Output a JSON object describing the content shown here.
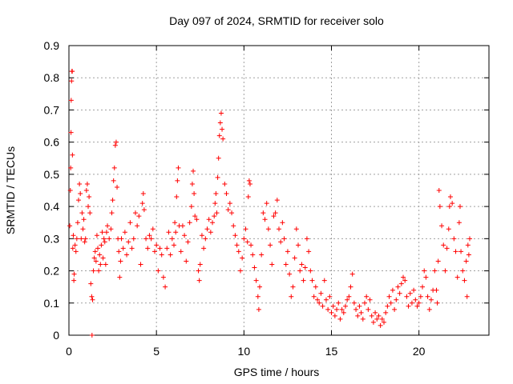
{
  "chart_data": {
    "type": "scatter",
    "title": "Day 097 of 2024, SRMTID for receiver solo",
    "xlabel": "GPS time / hours",
    "ylabel": "SRMTID / TECUs",
    "xlim": [
      0,
      24
    ],
    "ylim": [
      0,
      0.9
    ],
    "xticks": [
      0,
      5,
      10,
      15,
      20
    ],
    "yticks": [
      0,
      0.1,
      0.2,
      0.3,
      0.4,
      0.5,
      0.6,
      0.7,
      0.8,
      0.9
    ],
    "xtick_labels": [
      "0",
      "5",
      "10",
      "15",
      "20"
    ],
    "ytick_labels": [
      "0",
      "0.1",
      "0.2",
      "0.3",
      "0.4",
      "0.5",
      "0.6",
      "0.7",
      "0.8",
      "0.9"
    ],
    "grid": true,
    "marker": "+",
    "color": "#ff0000",
    "series": [
      {
        "name": "SRMTID",
        "points": [
          [
            0.05,
            0.34
          ],
          [
            0.08,
            0.45
          ],
          [
            0.1,
            0.52
          ],
          [
            0.12,
            0.63
          ],
          [
            0.13,
            0.73
          ],
          [
            0.15,
            0.79
          ],
          [
            0.17,
            0.82
          ],
          [
            0.19,
            0.82
          ],
          [
            0.2,
            0.56
          ],
          [
            0.22,
            0.27
          ],
          [
            0.25,
            0.31
          ],
          [
            0.28,
            0.17
          ],
          [
            0.3,
            0.19
          ],
          [
            0.35,
            0.28
          ],
          [
            0.4,
            0.26
          ],
          [
            0.45,
            0.3
          ],
          [
            0.5,
            0.35
          ],
          [
            0.55,
            0.42
          ],
          [
            0.6,
            0.47
          ],
          [
            0.65,
            0.44
          ],
          [
            0.7,
            0.3
          ],
          [
            0.75,
            0.38
          ],
          [
            0.8,
            0.33
          ],
          [
            0.85,
            0.36
          ],
          [
            0.9,
            0.29
          ],
          [
            0.95,
            0.3
          ],
          [
            1.0,
            0.45
          ],
          [
            1.05,
            0.47
          ],
          [
            1.1,
            0.4
          ],
          [
            1.15,
            0.43
          ],
          [
            1.2,
            0.38
          ],
          [
            1.25,
            0.16
          ],
          [
            1.3,
            0.12
          ],
          [
            1.32,
            0.0
          ],
          [
            1.35,
            0.11
          ],
          [
            1.4,
            0.2
          ],
          [
            1.45,
            0.24
          ],
          [
            1.5,
            0.26
          ],
          [
            1.55,
            0.23
          ],
          [
            1.6,
            0.31
          ],
          [
            1.65,
            0.27
          ],
          [
            1.7,
            0.2
          ],
          [
            1.75,
            0.25
          ],
          [
            1.8,
            0.22
          ],
          [
            1.85,
            0.28
          ],
          [
            1.9,
            0.32
          ],
          [
            1.95,
            0.24
          ],
          [
            2.0,
            0.3
          ],
          [
            2.05,
            0.29
          ],
          [
            2.1,
            0.22
          ],
          [
            2.15,
            0.32
          ],
          [
            2.2,
            0.34
          ],
          [
            2.3,
            0.3
          ],
          [
            2.4,
            0.33
          ],
          [
            2.45,
            0.38
          ],
          [
            2.5,
            0.42
          ],
          [
            2.55,
            0.48
          ],
          [
            2.6,
            0.52
          ],
          [
            2.65,
            0.59
          ],
          [
            2.7,
            0.6
          ],
          [
            2.75,
            0.46
          ],
          [
            2.8,
            0.3
          ],
          [
            2.85,
            0.26
          ],
          [
            2.9,
            0.18
          ],
          [
            2.95,
            0.23
          ],
          [
            3.0,
            0.3
          ],
          [
            3.1,
            0.27
          ],
          [
            3.2,
            0.32
          ],
          [
            3.3,
            0.25
          ],
          [
            3.4,
            0.29
          ],
          [
            3.5,
            0.35
          ],
          [
            3.6,
            0.27
          ],
          [
            3.7,
            0.3
          ],
          [
            3.8,
            0.38
          ],
          [
            3.9,
            0.34
          ],
          [
            4.0,
            0.37
          ],
          [
            4.1,
            0.22
          ],
          [
            4.2,
            0.41
          ],
          [
            4.25,
            0.44
          ],
          [
            4.3,
            0.39
          ],
          [
            4.4,
            0.3
          ],
          [
            4.5,
            0.27
          ],
          [
            4.6,
            0.31
          ],
          [
            4.7,
            0.3
          ],
          [
            4.8,
            0.33
          ],
          [
            4.9,
            0.26
          ],
          [
            5.0,
            0.28
          ],
          [
            5.1,
            0.2
          ],
          [
            5.2,
            0.27
          ],
          [
            5.3,
            0.25
          ],
          [
            5.4,
            0.18
          ],
          [
            5.5,
            0.15
          ],
          [
            5.6,
            0.27
          ],
          [
            5.7,
            0.32
          ],
          [
            5.8,
            0.25
          ],
          [
            5.9,
            0.3
          ],
          [
            6.0,
            0.28
          ],
          [
            6.05,
            0.35
          ],
          [
            6.1,
            0.32
          ],
          [
            6.15,
            0.43
          ],
          [
            6.2,
            0.48
          ],
          [
            6.25,
            0.52
          ],
          [
            6.3,
            0.34
          ],
          [
            6.4,
            0.26
          ],
          [
            6.5,
            0.34
          ],
          [
            6.6,
            0.31
          ],
          [
            6.7,
            0.23
          ],
          [
            6.8,
            0.29
          ],
          [
            6.9,
            0.35
          ],
          [
            7.0,
            0.4
          ],
          [
            7.05,
            0.47
          ],
          [
            7.1,
            0.51
          ],
          [
            7.15,
            0.44
          ],
          [
            7.2,
            0.37
          ],
          [
            7.3,
            0.36
          ],
          [
            7.4,
            0.2
          ],
          [
            7.45,
            0.17
          ],
          [
            7.5,
            0.22
          ],
          [
            7.6,
            0.31
          ],
          [
            7.7,
            0.27
          ],
          [
            7.8,
            0.3
          ],
          [
            7.9,
            0.33
          ],
          [
            8.0,
            0.36
          ],
          [
            8.1,
            0.32
          ],
          [
            8.2,
            0.35
          ],
          [
            8.3,
            0.37
          ],
          [
            8.35,
            0.41
          ],
          [
            8.4,
            0.44
          ],
          [
            8.45,
            0.38
          ],
          [
            8.5,
            0.49
          ],
          [
            8.55,
            0.55
          ],
          [
            8.6,
            0.62
          ],
          [
            8.65,
            0.66
          ],
          [
            8.7,
            0.69
          ],
          [
            8.75,
            0.64
          ],
          [
            8.8,
            0.61
          ],
          [
            8.9,
            0.47
          ],
          [
            9.0,
            0.44
          ],
          [
            9.1,
            0.39
          ],
          [
            9.2,
            0.41
          ],
          [
            9.3,
            0.38
          ],
          [
            9.4,
            0.34
          ],
          [
            9.5,
            0.31
          ],
          [
            9.6,
            0.28
          ],
          [
            9.7,
            0.26
          ],
          [
            9.8,
            0.2
          ],
          [
            9.9,
            0.24
          ],
          [
            10.0,
            0.3
          ],
          [
            10.1,
            0.33
          ],
          [
            10.2,
            0.29
          ],
          [
            10.25,
            0.43
          ],
          [
            10.3,
            0.48
          ],
          [
            10.35,
            0.47
          ],
          [
            10.4,
            0.28
          ],
          [
            10.5,
            0.25
          ],
          [
            10.6,
            0.21
          ],
          [
            10.7,
            0.17
          ],
          [
            10.8,
            0.12
          ],
          [
            10.85,
            0.08
          ],
          [
            10.9,
            0.15
          ],
          [
            11.0,
            0.25
          ],
          [
            11.1,
            0.38
          ],
          [
            11.2,
            0.36
          ],
          [
            11.3,
            0.41
          ],
          [
            11.4,
            0.33
          ],
          [
            11.5,
            0.28
          ],
          [
            11.6,
            0.22
          ],
          [
            11.7,
            0.37
          ],
          [
            11.8,
            0.38
          ],
          [
            11.9,
            0.42
          ],
          [
            12.0,
            0.33
          ],
          [
            12.1,
            0.29
          ],
          [
            12.2,
            0.35
          ],
          [
            12.3,
            0.3
          ],
          [
            12.4,
            0.22
          ],
          [
            12.5,
            0.26
          ],
          [
            12.6,
            0.19
          ],
          [
            12.7,
            0.12
          ],
          [
            12.8,
            0.15
          ],
          [
            12.9,
            0.24
          ],
          [
            13.0,
            0.33
          ],
          [
            13.1,
            0.28
          ],
          [
            13.2,
            0.2
          ],
          [
            13.3,
            0.22
          ],
          [
            13.4,
            0.17
          ],
          [
            13.5,
            0.21
          ],
          [
            13.6,
            0.3
          ],
          [
            13.7,
            0.26
          ],
          [
            13.8,
            0.2
          ],
          [
            13.9,
            0.17
          ],
          [
            14.0,
            0.12
          ],
          [
            14.1,
            0.15
          ],
          [
            14.2,
            0.11
          ],
          [
            14.3,
            0.1
          ],
          [
            14.4,
            0.13
          ],
          [
            14.5,
            0.09
          ],
          [
            14.6,
            0.17
          ],
          [
            14.7,
            0.11
          ],
          [
            14.8,
            0.08
          ],
          [
            14.9,
            0.12
          ],
          [
            15.0,
            0.07
          ],
          [
            15.1,
            0.09
          ],
          [
            15.2,
            0.06
          ],
          [
            15.3,
            0.08
          ],
          [
            15.4,
            0.1
          ],
          [
            15.5,
            0.05
          ],
          [
            15.6,
            0.08
          ],
          [
            15.7,
            0.07
          ],
          [
            15.8,
            0.09
          ],
          [
            15.9,
            0.11
          ],
          [
            16.0,
            0.12
          ],
          [
            16.1,
            0.15
          ],
          [
            16.2,
            0.19
          ],
          [
            16.3,
            0.1
          ],
          [
            16.4,
            0.08
          ],
          [
            16.5,
            0.06
          ],
          [
            16.6,
            0.09
          ],
          [
            16.7,
            0.07
          ],
          [
            16.8,
            0.05
          ],
          [
            16.9,
            0.1
          ],
          [
            17.0,
            0.12
          ],
          [
            17.1,
            0.08
          ],
          [
            17.2,
            0.11
          ],
          [
            17.3,
            0.06
          ],
          [
            17.4,
            0.04
          ],
          [
            17.5,
            0.07
          ],
          [
            17.6,
            0.05
          ],
          [
            17.7,
            0.06
          ],
          [
            17.8,
            0.03
          ],
          [
            17.9,
            0.05
          ],
          [
            18.0,
            0.04
          ],
          [
            18.1,
            0.07
          ],
          [
            18.2,
            0.09
          ],
          [
            18.3,
            0.12
          ],
          [
            18.4,
            0.1
          ],
          [
            18.5,
            0.14
          ],
          [
            18.6,
            0.08
          ],
          [
            18.7,
            0.11
          ],
          [
            18.8,
            0.15
          ],
          [
            18.9,
            0.13
          ],
          [
            19.0,
            0.16
          ],
          [
            19.1,
            0.18
          ],
          [
            19.2,
            0.17
          ],
          [
            19.3,
            0.12
          ],
          [
            19.4,
            0.09
          ],
          [
            19.5,
            0.13
          ],
          [
            19.6,
            0.1
          ],
          [
            19.7,
            0.14
          ],
          [
            19.8,
            0.11
          ],
          [
            19.9,
            0.09
          ],
          [
            20.0,
            0.1
          ],
          [
            20.1,
            0.12
          ],
          [
            20.2,
            0.15
          ],
          [
            20.3,
            0.2
          ],
          [
            20.4,
            0.18
          ],
          [
            20.5,
            0.12
          ],
          [
            20.6,
            0.08
          ],
          [
            20.7,
            0.11
          ],
          [
            20.8,
            0.14
          ],
          [
            20.9,
            0.2
          ],
          [
            21.0,
            0.14
          ],
          [
            21.05,
            0.1
          ],
          [
            21.1,
            0.23
          ],
          [
            21.15,
            0.45
          ],
          [
            21.2,
            0.4
          ],
          [
            21.3,
            0.34
          ],
          [
            21.4,
            0.28
          ],
          [
            21.5,
            0.2
          ],
          [
            21.6,
            0.27
          ],
          [
            21.7,
            0.33
          ],
          [
            21.75,
            0.4
          ],
          [
            21.8,
            0.43
          ],
          [
            21.9,
            0.41
          ],
          [
            22.0,
            0.3
          ],
          [
            22.1,
            0.26
          ],
          [
            22.2,
            0.18
          ],
          [
            22.3,
            0.35
          ],
          [
            22.35,
            0.4
          ],
          [
            22.4,
            0.26
          ],
          [
            22.5,
            0.2
          ],
          [
            22.6,
            0.17
          ],
          [
            22.7,
            0.23
          ],
          [
            22.75,
            0.12
          ],
          [
            22.8,
            0.28
          ],
          [
            22.85,
            0.25
          ],
          [
            22.9,
            0.3
          ]
        ]
      }
    ]
  }
}
